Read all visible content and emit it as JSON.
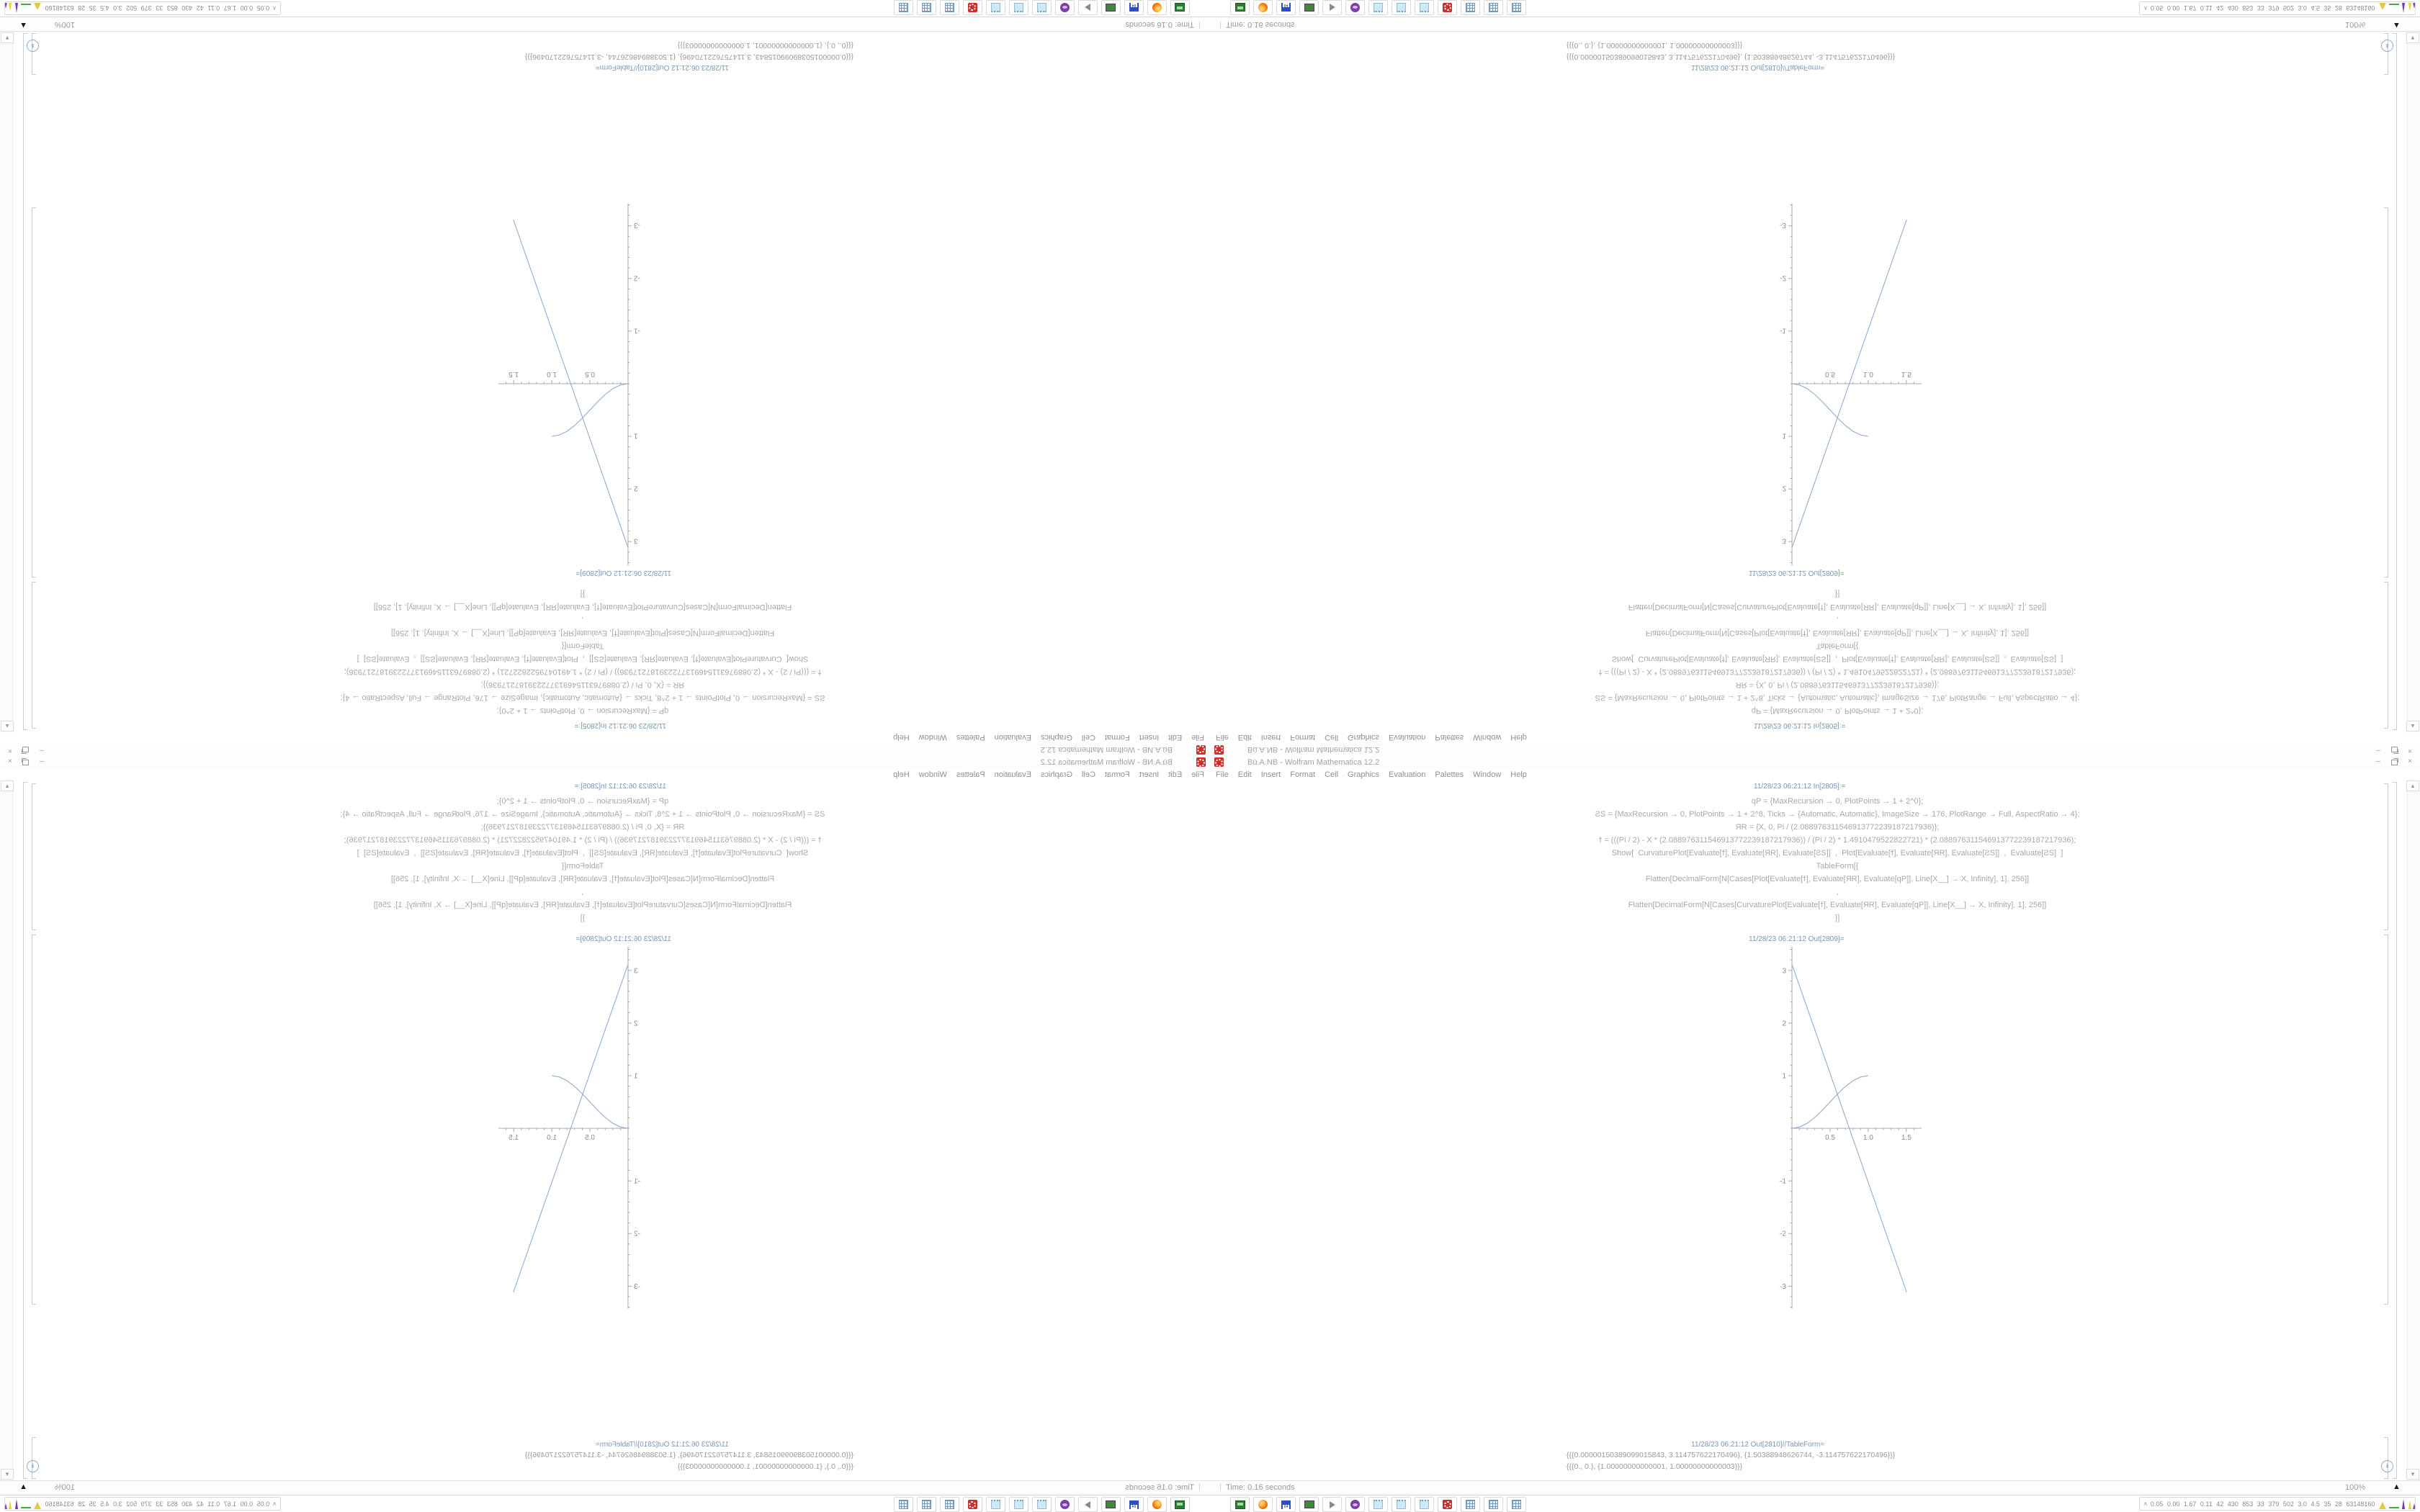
{
  "window": {
    "title": "Bü.A.NB - Wolfram Mathematica 12.2",
    "app_icon": "red-gear",
    "buttons": [
      "minimize",
      "restore",
      "close"
    ],
    "minimize_glyph": "–",
    "close_glyph": "×"
  },
  "menu": {
    "items": [
      "File",
      "Edit",
      "Insert",
      "Format",
      "Cell",
      "Graphics",
      "Evaluation",
      "Palettes",
      "Window",
      "Help"
    ]
  },
  "notebook": {
    "in_label": "11/28/23 06:21:12 In[2805]:=",
    "code_lines": [
      "qP = {MaxRecursion → 0, PlotPoints → 1 + 2^0};",
      "ƧS = {MaxRecursion → 0, PlotPoints → 1 + 2^8, Ticks → {Automatic, Automatic}, ImageSize → 176, PlotRange → Full, AspectRatio → 4};",
      "ЯR = {X, 0, Pi / (2.088976311546913772239187217936)};",
      "ϯ = (((Pi / 2) - X * (2.088976311546913772239187217936)) / (Pi / 2) * 1.4910479522822721) * (2.088976311546913772239187217936);",
      "Show[  CurvaturePlot[Evaluate[ϯ], Evaluate[ЯR], Evaluate[ƧS]]  ,  Plot[Evaluate[ϯ], Evaluate[ЯR], Evaluate[ƧS]]  ,  Evaluate[ƧS]  ]",
      "TableForm[{",
      "Flatten[DecimalForm[N[Cases[Plot[Evaluate[ϯ], Evaluate[ЯR], Evaluate[qP]], Line[X__] → X, Infinity], 1], 256]]",
      ",",
      "Flatten[DecimalForm[N[Cases[CurvaturePlot[Evaluate[ϯ], Evaluate[ЯR], Evaluate[qP]], Line[X__] → X, Infinity], 1], 256]]",
      "}]"
    ],
    "out_plot_label": "11/28/23 06:21:12 Out[2809]=",
    "out_table_label": "11/28/23 06:21:12 Out[2810]//TableForm=",
    "table_rows": [
      "{{{0.00000150389099015843, 3.114757622170496}, {1.50388948626744, -3.114757622170496}}}",
      "{{{0., 0.}, {1.00000000000001, 1.00000000000003}}}"
    ],
    "expand_icon_glyph": "↡",
    "scroll_up_glyph": "▲",
    "scroll_down_glyph": "▼"
  },
  "status_bar": {
    "divider": "|",
    "time": "Time: 0.16 seconds",
    "magnification": "100%",
    "triangle_glyph": "▲"
  },
  "taskbar": {
    "icons": [
      "drive",
      "firefox",
      "floppy-64",
      "monitor",
      "speaker",
      "cat",
      "notepad",
      "notepad",
      "notepad",
      "gear",
      "calculator",
      "calculator",
      "calculator"
    ],
    "tray_arrow_glyph": "∧",
    "tray_stats": "0.05 0.00 1.67 0.11 42 430 853 33 379 502 3.0 4.5 35 28 63148160"
  },
  "chart_data": {
    "type": "line",
    "title": "",
    "xlabel": "",
    "ylabel": "",
    "xlim": [
      0,
      1.7
    ],
    "ylim": [
      -3.42,
      3.49
    ],
    "xticks": [
      0.5,
      1.0,
      1.5
    ],
    "yticks": [
      -3,
      -2,
      -1,
      1,
      2,
      3
    ],
    "grid": false,
    "legend": false,
    "axis_color": "#9f9f9f",
    "line_color": "#8fadd2",
    "series": [
      {
        "name": "descending-line",
        "x": [
          0,
          1.5039
        ],
        "y": [
          3.1148,
          -3.1148
        ]
      },
      {
        "name": "sigmoid",
        "x": [
          0,
          0.1,
          0.2,
          0.3,
          0.4,
          0.5,
          0.6,
          0.7,
          0.8,
          0.9,
          1.0
        ],
        "y": [
          0,
          0.0245,
          0.0955,
          0.2061,
          0.3455,
          0.5,
          0.6545,
          0.7939,
          0.9045,
          0.9755,
          1.0
        ]
      }
    ]
  }
}
